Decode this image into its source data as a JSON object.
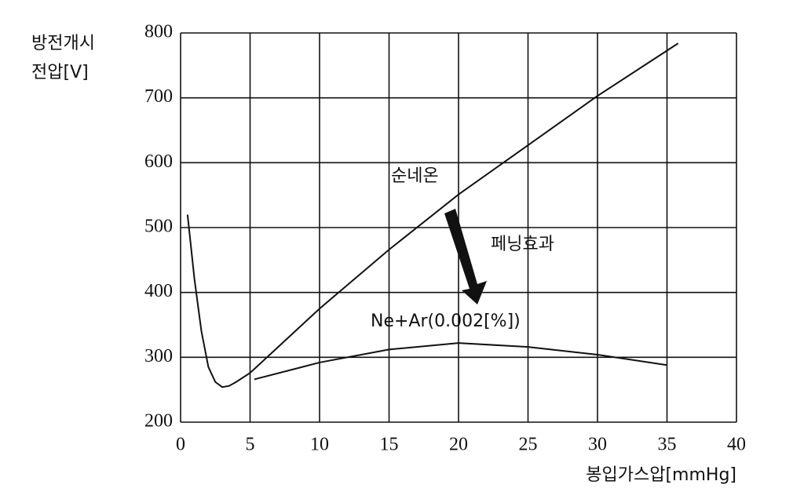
{
  "chart_data": {
    "type": "line",
    "ylabel": [
      "방전개시",
      "전압[V]"
    ],
    "xlabel": "봉입가스압[mmHg]",
    "xlim": [
      0,
      40
    ],
    "xticks": [
      0,
      5,
      10,
      15,
      20,
      25,
      30,
      35,
      40
    ],
    "ylim": [
      200,
      800
    ],
    "yticks": [
      200,
      300,
      400,
      500,
      600,
      700,
      800
    ],
    "grid": true,
    "series": [
      {
        "name": "순네온",
        "color": "#111111",
        "x": [
          0.5,
          1,
          1.5,
          2,
          2.5,
          3,
          3.5,
          4,
          5,
          10,
          15,
          20,
          25,
          30,
          35.8
        ],
        "values": [
          520,
          420,
          340,
          285,
          262,
          254,
          256,
          262,
          276,
          375,
          466,
          551,
          627,
          703,
          784
        ]
      },
      {
        "name": "Ne+Ar(0.002[%])",
        "color": "#111111",
        "x": [
          5.3,
          10,
          15,
          20,
          25,
          30,
          35
        ],
        "values": [
          266,
          292,
          312,
          322,
          316,
          304,
          288
        ]
      }
    ],
    "annotations": [
      "페닝효과"
    ]
  }
}
